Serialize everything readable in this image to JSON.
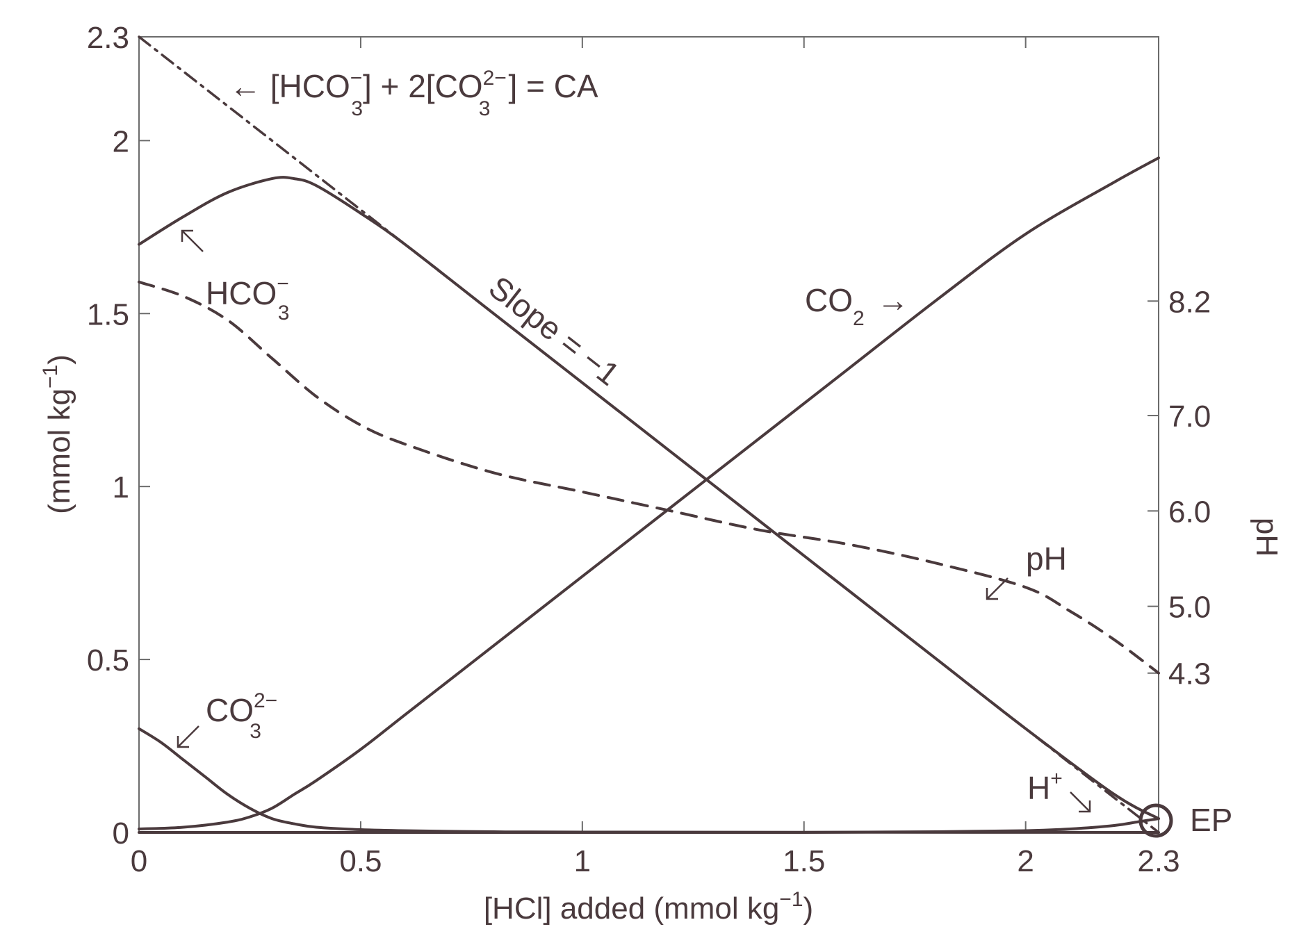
{
  "chart_data": {
    "type": "line",
    "xlabel": {
      "main": "[HCl] added (mmol kg",
      "sup": "−1",
      "close": ")"
    },
    "ylabel": {
      "main": "(mmol kg",
      "sup": "−1",
      "close": ")"
    },
    "y2label": "pH",
    "xlim": [
      0,
      2.3
    ],
    "ylim": [
      0,
      2.3
    ],
    "y2lim": [
      2.63,
      10.97
    ],
    "xticks": [
      {
        "value": 0,
        "label": "0"
      },
      {
        "value": 0.5,
        "label": "0.5"
      },
      {
        "value": 1,
        "label": "1"
      },
      {
        "value": 1.5,
        "label": "1.5"
      },
      {
        "value": 2,
        "label": "2"
      },
      {
        "value": 2.3,
        "label": "2.3"
      }
    ],
    "yticks": [
      {
        "value": 0,
        "label": "0"
      },
      {
        "value": 0.5,
        "label": "0.5"
      },
      {
        "value": 1,
        "label": "1"
      },
      {
        "value": 1.5,
        "label": "1.5"
      },
      {
        "value": 2,
        "label": "2"
      },
      {
        "value": 2.3,
        "label": "2.3"
      }
    ],
    "y2ticks": [
      {
        "value": 4.3,
        "label": "4.3"
      },
      {
        "value": 5.0,
        "label": "5.0"
      },
      {
        "value": 6.0,
        "label": "6.0"
      },
      {
        "value": 7.0,
        "label": "7.0"
      },
      {
        "value": 8.2,
        "label": "8.2"
      }
    ],
    "grid": false,
    "colors": {
      "ink": "#4a3a3d",
      "axis": "#6b6b6b"
    },
    "series": [
      {
        "key": "hco3",
        "style": "solid",
        "axis": "left",
        "x": [
          0,
          0.1,
          0.2,
          0.3,
          0.35,
          0.4,
          0.5,
          0.6,
          0.8,
          1.0,
          1.2,
          1.4,
          1.6,
          1.8,
          2.0,
          2.2,
          2.3
        ],
        "y": [
          1.7,
          1.78,
          1.85,
          1.89,
          1.89,
          1.87,
          1.79,
          1.7,
          1.5,
          1.3,
          1.1,
          0.9,
          0.7,
          0.5,
          0.3,
          0.11,
          0.04
        ]
      },
      {
        "key": "co2",
        "style": "solid",
        "axis": "left",
        "x": [
          0,
          0.1,
          0.2,
          0.25,
          0.3,
          0.35,
          0.4,
          0.5,
          0.6,
          0.8,
          1.0,
          1.2,
          1.4,
          1.6,
          1.8,
          2.0,
          2.2,
          2.3
        ],
        "y": [
          0.01,
          0.015,
          0.03,
          0.045,
          0.07,
          0.11,
          0.15,
          0.24,
          0.34,
          0.54,
          0.74,
          0.94,
          1.14,
          1.34,
          1.54,
          1.73,
          1.88,
          1.95
        ]
      },
      {
        "key": "co3",
        "style": "solid",
        "axis": "left",
        "x": [
          0,
          0.05,
          0.1,
          0.15,
          0.2,
          0.25,
          0.3,
          0.35,
          0.4,
          0.5,
          0.6,
          0.8,
          1.0,
          2.3
        ],
        "y": [
          0.3,
          0.26,
          0.21,
          0.16,
          0.11,
          0.07,
          0.04,
          0.025,
          0.015,
          0.008,
          0.005,
          0.002,
          0.001,
          0.0
        ]
      },
      {
        "key": "hplus",
        "style": "solid",
        "axis": "left",
        "x": [
          0,
          1.0,
          1.5,
          1.8,
          2.0,
          2.1,
          2.2,
          2.25,
          2.3
        ],
        "y": [
          0.0,
          0.0,
          0.0,
          0.002,
          0.005,
          0.01,
          0.02,
          0.03,
          0.04
        ]
      },
      {
        "key": "ph",
        "style": "dashed",
        "axis": "right",
        "x": [
          0,
          0.1,
          0.2,
          0.3,
          0.4,
          0.5,
          0.6,
          0.8,
          1.0,
          1.2,
          1.4,
          1.6,
          1.8,
          2.0,
          2.1,
          2.2,
          2.3
        ],
        "y": [
          8.4,
          8.25,
          8.0,
          7.6,
          7.2,
          6.9,
          6.7,
          6.4,
          6.2,
          6.0,
          5.8,
          5.65,
          5.45,
          5.2,
          4.95,
          4.65,
          4.3
        ]
      },
      {
        "key": "ca",
        "style": "dashdot",
        "axis": "left",
        "x": [
          0,
          2.3
        ],
        "y": [
          2.3,
          0.0
        ]
      }
    ],
    "annotations": {
      "ca_eq": {
        "pre": "← [HCO",
        "sub1": "3",
        "sup1": "−",
        "mid": "] + 2[CO",
        "sub2": "3",
        "sup2": "2−",
        "post": "] = CA"
      },
      "hco3": {
        "main": "HCO",
        "sub": "3",
        "sup": "−"
      },
      "co3": {
        "main": "CO",
        "sub": "3",
        "sup": "2−"
      },
      "co2": {
        "main": "CO",
        "sub": "2",
        "arrow": "→"
      },
      "ph": "pH",
      "hplus": {
        "main": "H",
        "sup": "+"
      },
      "slope": "Slope = −1",
      "ep": "EP"
    }
  }
}
